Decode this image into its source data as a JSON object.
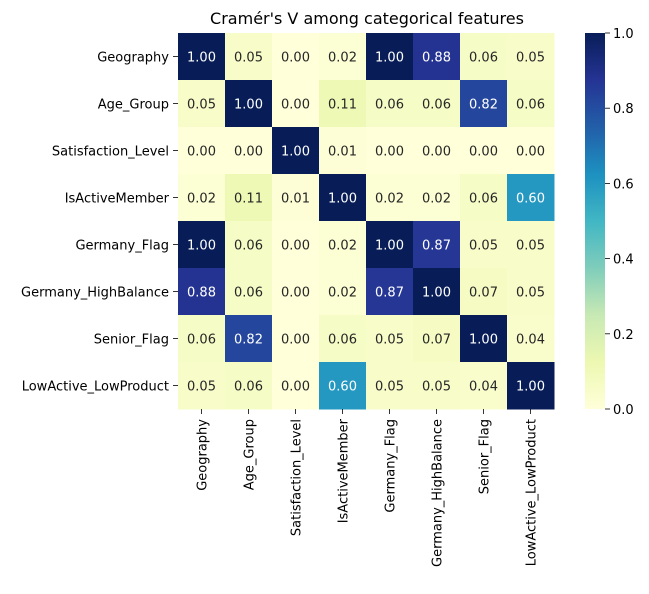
{
  "chart_data": {
    "type": "heatmap",
    "title": "Cramér's V among categorical features",
    "xlabel": "",
    "ylabel": "",
    "x_categories": [
      "Geography",
      "Age_Group",
      "Satisfaction_Level",
      "IsActiveMember",
      "Germany_Flag",
      "Germany_HighBalance",
      "Senior_Flag",
      "LowActive_LowProduct"
    ],
    "y_categories": [
      "Geography",
      "Age_Group",
      "Satisfaction_Level",
      "IsActiveMember",
      "Germany_Flag",
      "Germany_HighBalance",
      "Senior_Flag",
      "LowActive_LowProduct"
    ],
    "values": [
      [
        1.0,
        0.05,
        0.0,
        0.02,
        1.0,
        0.88,
        0.06,
        0.05
      ],
      [
        0.05,
        1.0,
        0.0,
        0.11,
        0.06,
        0.06,
        0.82,
        0.06
      ],
      [
        0.0,
        0.0,
        1.0,
        0.01,
        0.0,
        0.0,
        0.0,
        0.0
      ],
      [
        0.02,
        0.11,
        0.01,
        1.0,
        0.02,
        0.02,
        0.06,
        0.6
      ],
      [
        1.0,
        0.06,
        0.0,
        0.02,
        1.0,
        0.87,
        0.05,
        0.05
      ],
      [
        0.88,
        0.06,
        0.0,
        0.02,
        0.87,
        1.0,
        0.07,
        0.05
      ],
      [
        0.06,
        0.82,
        0.0,
        0.06,
        0.05,
        0.07,
        1.0,
        0.04
      ],
      [
        0.05,
        0.06,
        0.0,
        0.6,
        0.05,
        0.05,
        0.04,
        1.0
      ]
    ],
    "value_format": "0.00",
    "colormap": "YlGnBu",
    "colorbar": {
      "range": [
        0.0,
        1.0
      ],
      "ticks": [
        "0.0",
        "0.2",
        "0.4",
        "0.6",
        "0.8",
        "1.0"
      ]
    },
    "annotation_colors": {
      "light_cells": "#262626",
      "dark_cells": "#ffffff"
    },
    "grid": false,
    "legend": "colorbar-right"
  }
}
